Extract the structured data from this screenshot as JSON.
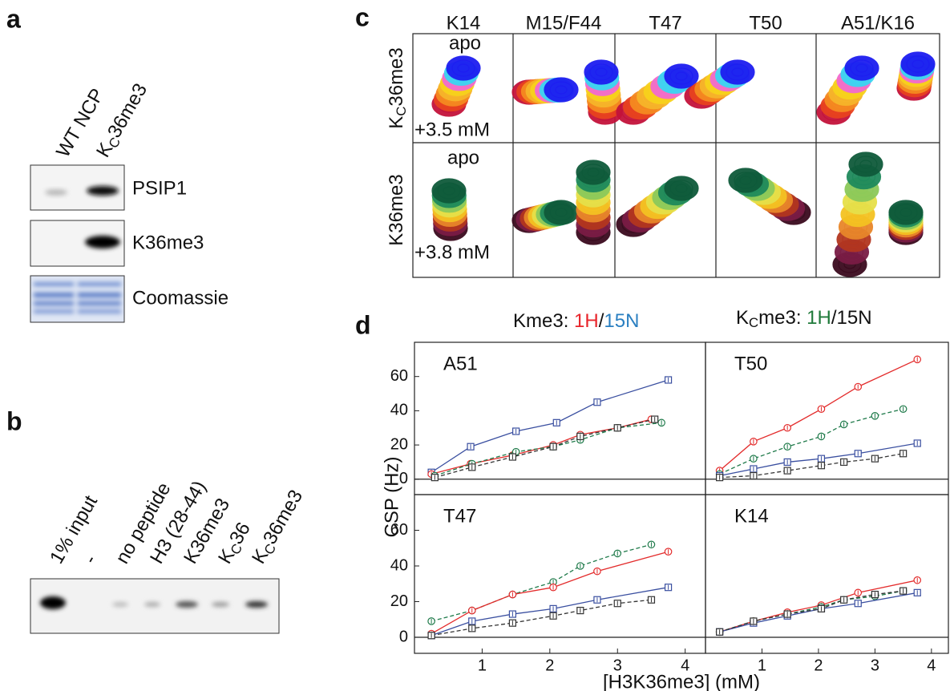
{
  "panel_a": {
    "label": "a",
    "lanes": [
      {
        "text": "WT NCP"
      },
      {
        "text": "K",
        "sub": "C",
        "rest": "36me3"
      }
    ],
    "blots": [
      "PSIP1",
      "K36me3",
      "Coomassie"
    ]
  },
  "panel_b": {
    "label": "b",
    "lanes": [
      {
        "text": "1% input"
      },
      {
        "text": "-"
      },
      {
        "text": "no peptide"
      },
      {
        "text": "H3 (28-44)"
      },
      {
        "text": "K36me3"
      },
      {
        "text": "K",
        "sub": "C",
        "rest": "36"
      },
      {
        "text": "K",
        "sub": "C",
        "rest": "36me3"
      }
    ]
  },
  "panel_c": {
    "label": "c",
    "columns": [
      "K14",
      "M15/F44",
      "T47",
      "T50",
      "A51/K16"
    ],
    "rows": [
      {
        "text": "K",
        "sub": "C",
        "rest": "36me3"
      },
      {
        "text": "K36me3"
      }
    ],
    "annotations": [
      {
        "text": "apo",
        "color": "#e8242b"
      },
      {
        "text": "+3.5 mM",
        "color": "#1a1adc"
      },
      {
        "text": "apo",
        "color": "#222222"
      },
      {
        "text": "+3.8 mM",
        "color": "#1f7a3a"
      }
    ]
  },
  "panel_d": {
    "label": "d",
    "legend": [
      [
        {
          "text": "Kme3: "
        },
        {
          "text": "1H",
          "color": "#e8242b"
        },
        {
          "text": "/"
        },
        {
          "text": "15N",
          "color": "#2a7fc1"
        }
      ],
      [
        {
          "text": "K"
        },
        {
          "text": "C",
          "sub": true
        },
        {
          "text": "me3: "
        },
        {
          "text": "1H",
          "color": "#1f7a3a"
        },
        {
          "text": "/15N"
        }
      ]
    ],
    "ylabel": "CSP (Hz)",
    "xlabel": "[H3K36me3] (mM)"
  },
  "chart_data": [
    {
      "type": "line",
      "title": "A51",
      "xlim": [
        0,
        4.3
      ],
      "ylim": [
        -9,
        80
      ],
      "yticks": [
        0,
        20,
        40,
        60
      ],
      "series": [
        {
          "color": "#3a4fa0",
          "marker": "square",
          "dashed": false,
          "x": [
            0.25,
            0.83,
            1.5,
            2.1,
            2.7,
            3.75
          ],
          "values": [
            4,
            19,
            28,
            33,
            45,
            58
          ]
        },
        {
          "color": "#e32b2b",
          "marker": "circle",
          "dashed": false,
          "x": [
            0.25,
            0.83,
            1.45,
            2.05,
            2.45,
            3.0,
            3.5
          ],
          "values": [
            3,
            9,
            14,
            20,
            26,
            30,
            35
          ]
        },
        {
          "color": "#1f7a4a",
          "marker": "circle",
          "dashed": true,
          "x": [
            0.3,
            0.85,
            1.5,
            2.05,
            2.45,
            3.0,
            3.65
          ],
          "values": [
            2,
            9,
            16,
            19,
            23,
            30,
            33
          ]
        },
        {
          "color": "#333333",
          "marker": "square",
          "dashed": true,
          "x": [
            0.3,
            0.85,
            1.45,
            2.05,
            2.45,
            3.0,
            3.55
          ],
          "values": [
            1,
            7,
            13,
            19,
            25,
            30,
            35
          ]
        }
      ]
    },
    {
      "type": "line",
      "title": "T50",
      "xlim": [
        0,
        4.3
      ],
      "ylim": [
        -9,
        80
      ],
      "series": [
        {
          "color": "#e32b2b",
          "marker": "circle",
          "dashed": false,
          "x": [
            0.25,
            0.85,
            1.45,
            2.05,
            2.7,
            3.75
          ],
          "values": [
            5,
            22,
            30,
            41,
            54,
            70
          ]
        },
        {
          "color": "#1f7a4a",
          "marker": "circle",
          "dashed": true,
          "x": [
            0.25,
            0.85,
            1.45,
            2.05,
            2.45,
            3.0,
            3.5
          ],
          "values": [
            3,
            12,
            19,
            25,
            32,
            37,
            41
          ]
        },
        {
          "color": "#3a4fa0",
          "marker": "square",
          "dashed": false,
          "x": [
            0.25,
            0.85,
            1.45,
            2.05,
            2.7,
            3.75
          ],
          "values": [
            2,
            6,
            10,
            12,
            15,
            21
          ]
        },
        {
          "color": "#333333",
          "marker": "square",
          "dashed": true,
          "x": [
            0.25,
            0.85,
            1.45,
            2.05,
            2.45,
            3.0,
            3.5
          ],
          "values": [
            1,
            2,
            5,
            8,
            10,
            12,
            15
          ]
        }
      ]
    },
    {
      "type": "line",
      "title": "T47",
      "xlim": [
        0,
        4.3
      ],
      "ylim": [
        -9,
        80
      ],
      "xticks": [
        1,
        2,
        3,
        4
      ],
      "yticks": [
        0,
        20,
        40,
        60
      ],
      "series": [
        {
          "color": "#1f7a4a",
          "marker": "circle",
          "dashed": true,
          "x": [
            0.25,
            0.85,
            1.45,
            2.05,
            2.45,
            3.0,
            3.5
          ],
          "values": [
            9,
            15,
            24,
            31,
            40,
            47,
            52
          ]
        },
        {
          "color": "#e32b2b",
          "marker": "circle",
          "dashed": false,
          "x": [
            0.25,
            0.85,
            1.45,
            2.05,
            2.7,
            3.75
          ],
          "values": [
            2,
            15,
            24,
            28,
            37,
            48
          ]
        },
        {
          "color": "#3a4fa0",
          "marker": "square",
          "dashed": false,
          "x": [
            0.25,
            0.85,
            1.45,
            2.05,
            2.7,
            3.75
          ],
          "values": [
            1,
            9,
            13,
            16,
            21,
            28
          ]
        },
        {
          "color": "#333333",
          "marker": "square",
          "dashed": true,
          "x": [
            0.25,
            0.85,
            1.45,
            2.05,
            2.45,
            3.0,
            3.5
          ],
          "values": [
            1,
            5,
            8,
            12,
            15,
            19,
            21
          ]
        }
      ]
    },
    {
      "type": "line",
      "title": "K14",
      "xlim": [
        0,
        4.3
      ],
      "ylim": [
        -9,
        80
      ],
      "xticks": [
        1,
        2,
        3,
        4
      ],
      "series": [
        {
          "color": "#e32b2b",
          "marker": "circle",
          "dashed": false,
          "x": [
            0.25,
            0.85,
            1.45,
            2.05,
            2.7,
            3.75
          ],
          "values": [
            3,
            9,
            14,
            18,
            25,
            32
          ]
        },
        {
          "color": "#1f7a4a",
          "marker": "circle",
          "dashed": true,
          "x": [
            0.25,
            0.85,
            1.45,
            2.05,
            2.45,
            3.0,
            3.5
          ],
          "values": [
            3,
            9,
            13,
            17,
            21,
            23,
            26
          ]
        },
        {
          "color": "#3a4fa0",
          "marker": "square",
          "dashed": false,
          "x": [
            0.25,
            0.85,
            1.45,
            2.05,
            2.7,
            3.75
          ],
          "values": [
            3,
            8,
            12,
            16,
            19,
            25
          ]
        },
        {
          "color": "#333333",
          "marker": "square",
          "dashed": true,
          "x": [
            0.25,
            0.85,
            1.45,
            2.05,
            2.45,
            3.0,
            3.5
          ],
          "values": [
            3,
            9,
            13,
            16,
            21,
            24,
            26
          ]
        }
      ]
    }
  ]
}
